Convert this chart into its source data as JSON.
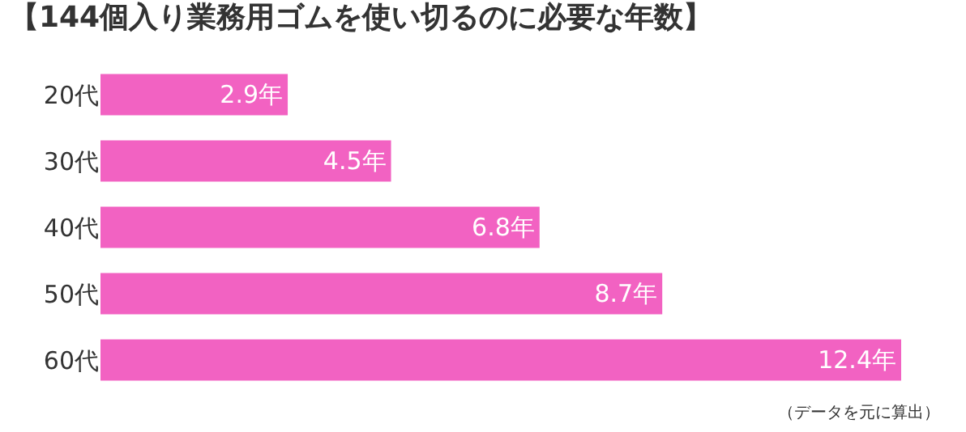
{
  "chart_data": {
    "type": "bar",
    "orientation": "horizontal",
    "title": "【144個入り業務用ゴムを使い切るのに必要な年数】",
    "categories": [
      "20代",
      "30代",
      "40代",
      "50代",
      "60代"
    ],
    "values": [
      2.9,
      4.5,
      6.8,
      8.7,
      12.4
    ],
    "value_labels": [
      "2.9年",
      "4.5年",
      "6.8年",
      "8.7年",
      "12.4年"
    ],
    "color": "#f262c2",
    "annotations": [
      "（データを元に算出）"
    ]
  }
}
